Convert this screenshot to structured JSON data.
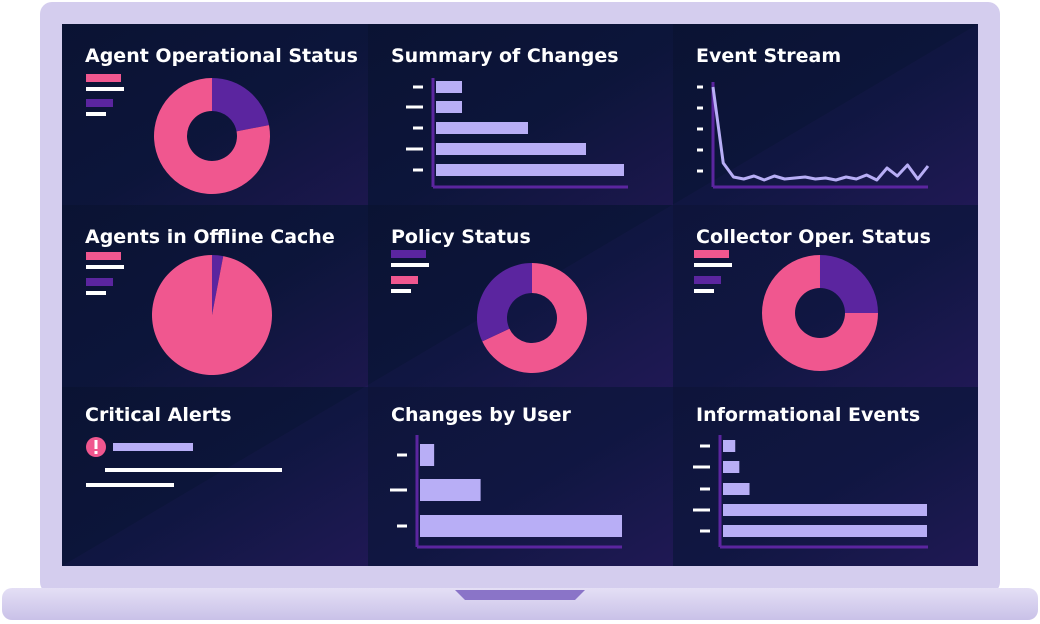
{
  "panels": [
    {
      "title": "Agent Operational Status",
      "chart": {
        "type": "donut",
        "values": [
          22,
          78
        ],
        "colors": [
          "#5b259f",
          "#f0578f"
        ]
      }
    },
    {
      "title": "Summary of Changes",
      "chart": {
        "type": "hbar",
        "values": [
          13,
          13,
          46,
          75,
          94
        ],
        "xlim": [
          0,
          100
        ],
        "color": "#b8aef6"
      }
    },
    {
      "title": "Event Stream",
      "chart": {
        "type": "line",
        "values": [
          98,
          22,
          8,
          6,
          9,
          5,
          9,
          6,
          7,
          8,
          6,
          7,
          5,
          8,
          6,
          10,
          5,
          17,
          9,
          20,
          6,
          19
        ],
        "ylim": [
          0,
          100
        ],
        "color": "#b8aef6"
      }
    },
    {
      "title": "Agents in Offline Cache",
      "chart": {
        "type": "pie",
        "values": [
          3,
          97
        ],
        "colors": [
          "#5b259f",
          "#f0578f"
        ]
      }
    },
    {
      "title": "Policy Status",
      "chart": {
        "type": "donut",
        "values": [
          68,
          32
        ],
        "colors": [
          "#f0578f",
          "#5b259f"
        ]
      }
    },
    {
      "title": "Collector Oper. Status",
      "chart": {
        "type": "donut",
        "values": [
          25,
          75
        ],
        "colors": [
          "#5b259f",
          "#f0578f"
        ]
      }
    },
    {
      "title": "Critical Alerts",
      "chart": {
        "type": "alerts"
      }
    },
    {
      "title": "Changes by User",
      "chart": {
        "type": "hbar",
        "values": [
          7,
          30,
          100
        ],
        "xlim": [
          0,
          100
        ],
        "color": "#b8aef6"
      }
    },
    {
      "title": "Informational Events",
      "chart": {
        "type": "hbar",
        "values": [
          6,
          8,
          13,
          100,
          100
        ],
        "xlim": [
          0,
          100
        ],
        "color": "#b8aef6"
      }
    }
  ]
}
